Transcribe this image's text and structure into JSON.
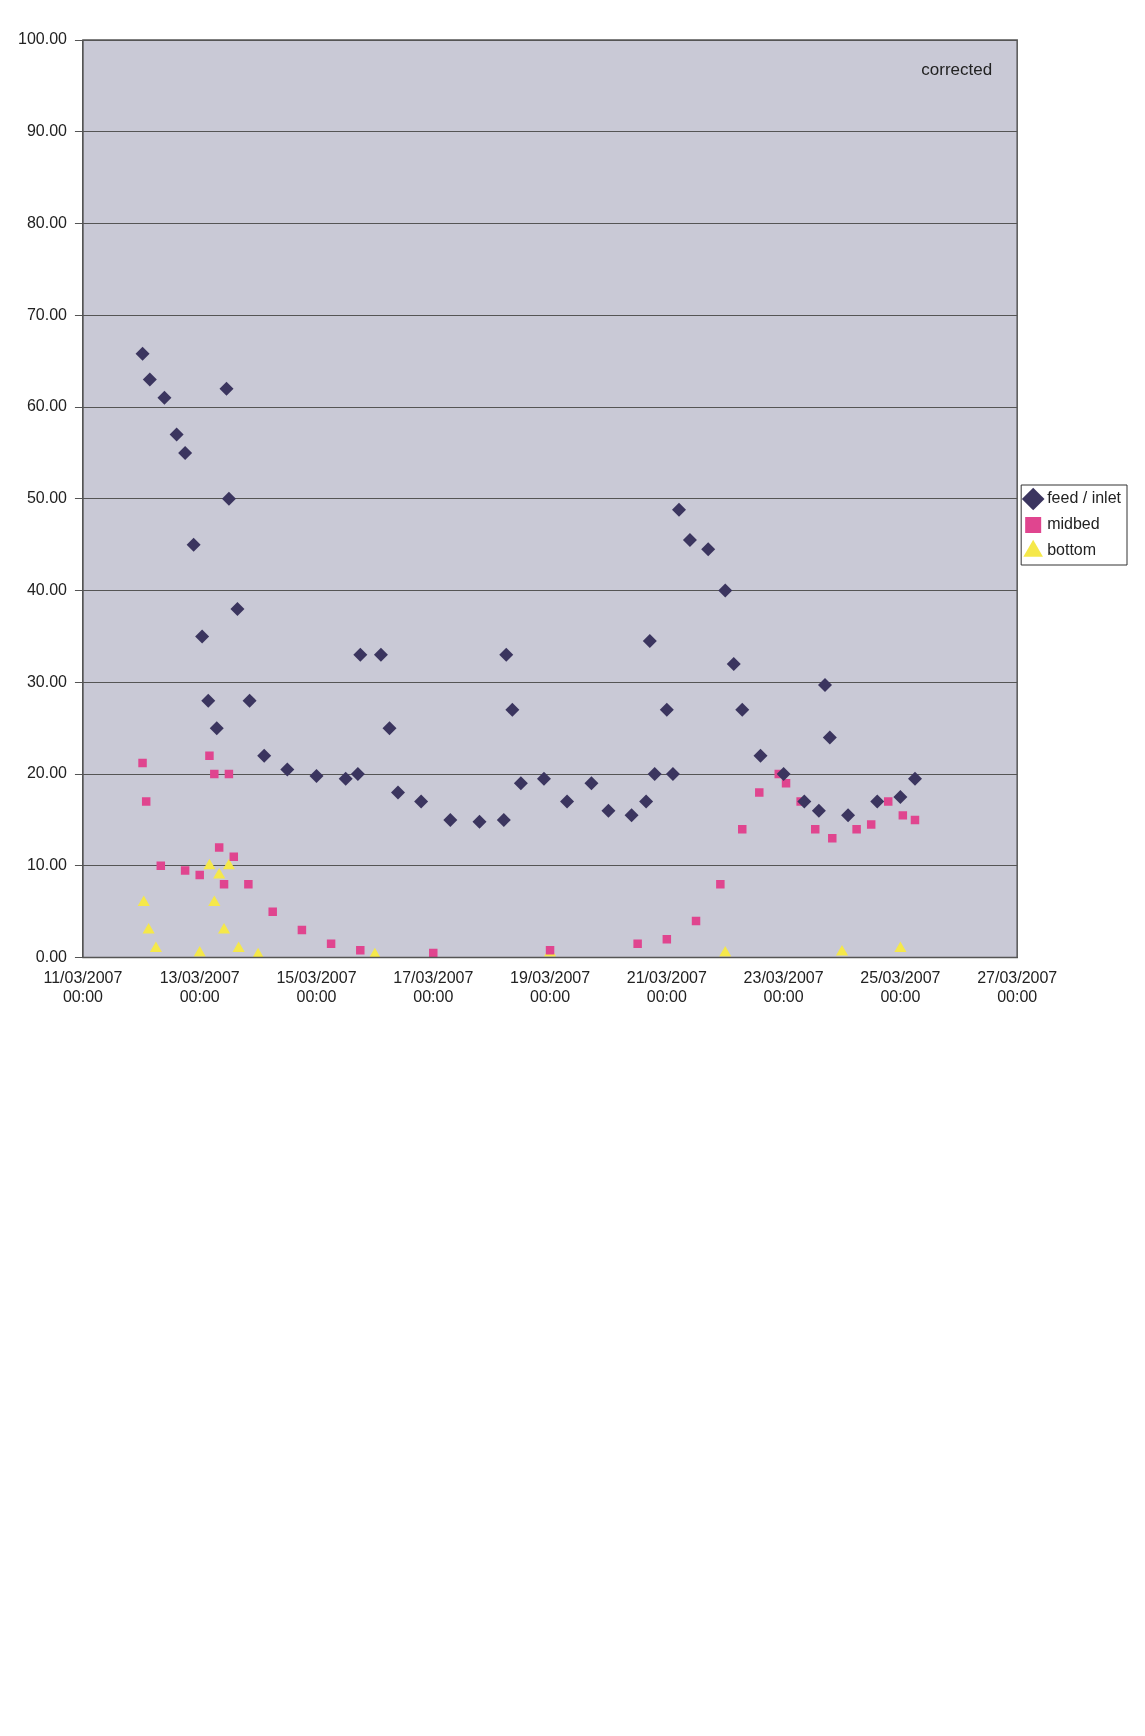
{
  "chart_data": {
    "type": "scatter",
    "annotations": [
      "corrected"
    ],
    "xlim": [
      "2007-03-11",
      "2007-03-27"
    ],
    "xticks": [
      {
        "value": "2007-03-11",
        "label": "11/03/2007 00:00"
      },
      {
        "value": "2007-03-13",
        "label": "13/03/2007 00:00"
      },
      {
        "value": "2007-03-15",
        "label": "15/03/2007 00:00"
      },
      {
        "value": "2007-03-17",
        "label": "17/03/2007 00:00"
      },
      {
        "value": "2007-03-19",
        "label": "19/03/2007 00:00"
      },
      {
        "value": "2007-03-21",
        "label": "21/03/2007 00:00"
      },
      {
        "value": "2007-03-23",
        "label": "23/03/2007 00:00"
      },
      {
        "value": "2007-03-25",
        "label": "25/03/2007 00:00"
      },
      {
        "value": "2007-03-27",
        "label": "27/03/2007 00:00"
      }
    ],
    "ylim": [
      0,
      100
    ],
    "yticks": [
      {
        "value": 0,
        "label": "0.00"
      },
      {
        "value": 10,
        "label": "10.00"
      },
      {
        "value": 20,
        "label": "20.00"
      },
      {
        "value": 30,
        "label": "30.00"
      },
      {
        "value": 40,
        "label": "40.00"
      },
      {
        "value": 50,
        "label": "50.00"
      },
      {
        "value": 60,
        "label": "60.00"
      },
      {
        "value": 70,
        "label": "70.00"
      },
      {
        "value": 80,
        "label": "80.00"
      },
      {
        "value": 90,
        "label": "90.00"
      },
      {
        "value": 100,
        "label": "100.00"
      }
    ],
    "grid": "y",
    "legend": "right",
    "series": [
      {
        "name": "feed / inlet",
        "color": "#3b355f",
        "marker": "diamond",
        "x": [
          "2007-03-12T00:30",
          "2007-03-12T03:30",
          "2007-03-12T09:30",
          "2007-03-12T14:30",
          "2007-03-12T18:00",
          "2007-03-12T21:30",
          "2007-03-13T01:00",
          "2007-03-13T03:30",
          "2007-03-13T07:00",
          "2007-03-13T11:00",
          "2007-03-13T12:00",
          "2007-03-13T15:30",
          "2007-03-13T20:30",
          "2007-03-14T02:30",
          "2007-03-14T12:00",
          "2007-03-15T00:00",
          "2007-03-15T12:00",
          "2007-03-15T17:00",
          "2007-03-15T18:00",
          "2007-03-16T02:30",
          "2007-03-16T06:00",
          "2007-03-16T09:30",
          "2007-03-16T19:00",
          "2007-03-17T07:00",
          "2007-03-17T19:00",
          "2007-03-18T05:00",
          "2007-03-18T06:00",
          "2007-03-18T08:30",
          "2007-03-18T12:00",
          "2007-03-18T21:30",
          "2007-03-19T07:00",
          "2007-03-19T17:00",
          "2007-03-20T00:00",
          "2007-03-20T09:30",
          "2007-03-20T15:30",
          "2007-03-20T17:00",
          "2007-03-20T19:00",
          "2007-03-21T00:00",
          "2007-03-21T02:30",
          "2007-03-21T05:00",
          "2007-03-21T09:30",
          "2007-03-21T17:00",
          "2007-03-22T00:00",
          "2007-03-22T03:30",
          "2007-03-22T07:00",
          "2007-03-22T14:30",
          "2007-03-23T00:00",
          "2007-03-23T08:30",
          "2007-03-23T14:30",
          "2007-03-23T17:00",
          "2007-03-23T19:00",
          "2007-03-24T02:30",
          "2007-03-24T14:30",
          "2007-03-25T00:00",
          "2007-03-25T06:00"
        ],
        "values": [
          65.8,
          63,
          61,
          57,
          55,
          45,
          35,
          28,
          25,
          62,
          50,
          38,
          28,
          22,
          20.5,
          19.8,
          19.5,
          20,
          33,
          33,
          25,
          18,
          17,
          15,
          14.8,
          15,
          33,
          27,
          19,
          19.5,
          17,
          19,
          16,
          15.5,
          17,
          34.5,
          20,
          27,
          20,
          48.8,
          45.5,
          44.5,
          40,
          32,
          27,
          22,
          20,
          17,
          16,
          29.7,
          24,
          15.5,
          17,
          17.5,
          19.5
        ]
      },
      {
        "name": "midbed",
        "color": "#e0458f",
        "marker": "square",
        "x": [
          "2007-03-12T00:30",
          "2007-03-12T02:00",
          "2007-03-12T08:00",
          "2007-03-12T18:00",
          "2007-03-13T00:00",
          "2007-03-13T04:00",
          "2007-03-13T06:00",
          "2007-03-13T08:00",
          "2007-03-13T10:00",
          "2007-03-13T12:00",
          "2007-03-13T14:00",
          "2007-03-13T20:00",
          "2007-03-14T06:00",
          "2007-03-14T18:00",
          "2007-03-15T06:00",
          "2007-03-15T18:00",
          "2007-03-17T00:00",
          "2007-03-19T00:00",
          "2007-03-20T12:00",
          "2007-03-21T00:00",
          "2007-03-21T12:00",
          "2007-03-21T22:00",
          "2007-03-22T07:00",
          "2007-03-22T14:00",
          "2007-03-22T22:00",
          "2007-03-23T01:00",
          "2007-03-23T07:00",
          "2007-03-23T13:00",
          "2007-03-23T20:00",
          "2007-03-24T06:00",
          "2007-03-24T12:00",
          "2007-03-24T19:00",
          "2007-03-25T01:00",
          "2007-03-25T06:00"
        ],
        "values": [
          21.2,
          17,
          10,
          9.5,
          9,
          22,
          20,
          12,
          8,
          20,
          11,
          8,
          5,
          3,
          1.5,
          0.8,
          0.5,
          0.8,
          1.5,
          2,
          4,
          8,
          14,
          18,
          20,
          19,
          17,
          14,
          13,
          14,
          14.5,
          17,
          15.5,
          15
        ]
      },
      {
        "name": "bottom",
        "color": "#f5e84a",
        "marker": "triangle",
        "x": [
          "2007-03-12T01:00",
          "2007-03-12T03:00",
          "2007-03-12T06:00",
          "2007-03-13T00:00",
          "2007-03-13T04:00",
          "2007-03-13T06:00",
          "2007-03-13T08:00",
          "2007-03-13T10:00",
          "2007-03-13T12:00",
          "2007-03-13T16:00",
          "2007-03-14T00:00",
          "2007-03-16T00:00",
          "2007-03-19T00:00",
          "2007-03-22T00:00",
          "2007-03-24T00:00",
          "2007-03-25T00:00"
        ],
        "values": [
          6,
          3,
          1,
          0.5,
          10,
          6,
          9,
          3,
          10,
          1,
          0.3,
          0.3,
          0.5,
          0.5,
          0.6,
          1
        ]
      }
    ]
  }
}
